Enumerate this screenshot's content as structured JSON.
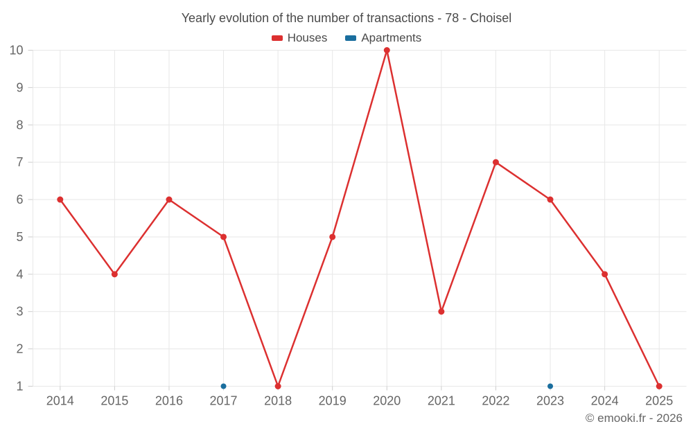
{
  "title": "Yearly evolution of the number of transactions - 78 - Choisel",
  "legend": [
    {
      "label": "Houses",
      "color": "#dc3030"
    },
    {
      "label": "Apartments",
      "color": "#1a6e9e"
    }
  ],
  "copyright": "© emooki.fr - 2026",
  "colors": {
    "grid": "#e7e7e7",
    "tick": "#cccccc",
    "axis_label": "#666666",
    "title_text": "#4a4a4a"
  },
  "chart_data": {
    "type": "line",
    "title": "Yearly evolution of the number of transactions - 78 - Choisel",
    "categories": [
      "2014",
      "2015",
      "2016",
      "2017",
      "2018",
      "2019",
      "2020",
      "2021",
      "2022",
      "2023",
      "2024",
      "2025"
    ],
    "series": [
      {
        "name": "Houses",
        "color": "#dc3030",
        "values": [
          6,
          4,
          6,
          5,
          1,
          5,
          10,
          3,
          7,
          6,
          4,
          1
        ]
      },
      {
        "name": "Apartments",
        "color": "#1a6e9e",
        "values": [
          null,
          null,
          null,
          1,
          null,
          null,
          null,
          null,
          null,
          1,
          null,
          null
        ]
      }
    ],
    "xlabel": "",
    "ylabel": "",
    "ylim": [
      1,
      10
    ],
    "y_ticks": [
      1,
      2,
      3,
      4,
      5,
      6,
      7,
      8,
      9,
      10
    ],
    "grid": true,
    "legend_position": "top"
  }
}
